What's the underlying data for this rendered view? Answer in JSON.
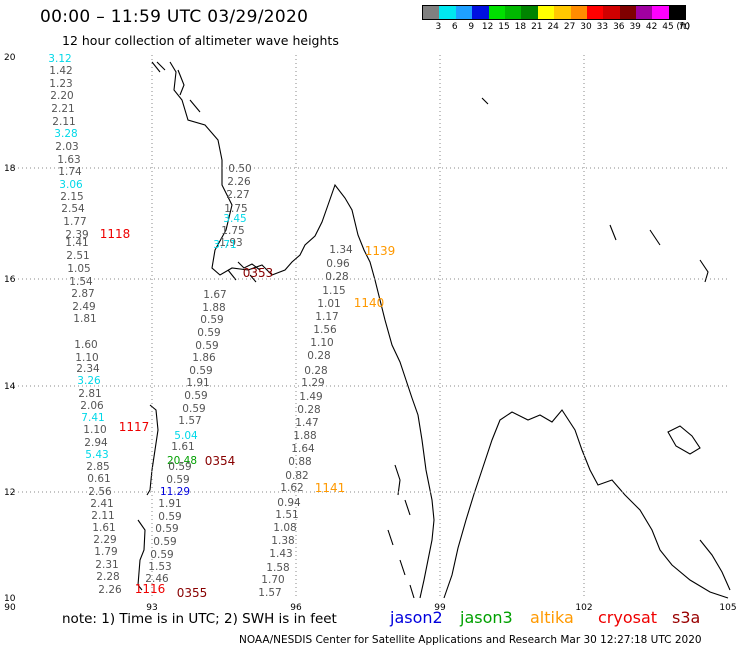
{
  "header": {
    "title": "00:00 – 11:59 UTC 03/29/2020",
    "subtitle": "12 hour collection of altimeter wave heights"
  },
  "legend": {
    "unit": "(ft)",
    "items": [
      {
        "label": "3",
        "color": "#808080"
      },
      {
        "label": "6",
        "color": "#00e8f0"
      },
      {
        "label": "9",
        "color": "#1ea0ff"
      },
      {
        "label": "12",
        "color": "#0010e0"
      },
      {
        "label": "15",
        "color": "#00e000"
      },
      {
        "label": "18",
        "color": "#00b800"
      },
      {
        "label": "21",
        "color": "#008400"
      },
      {
        "label": "24",
        "color": "#ffff00"
      },
      {
        "label": "27",
        "color": "#ffc800"
      },
      {
        "label": "30",
        "color": "#ff8c00"
      },
      {
        "label": "33",
        "color": "#ff0000"
      },
      {
        "label": "36",
        "color": "#d00000"
      },
      {
        "label": "39",
        "color": "#800000"
      },
      {
        "label": "42",
        "color": "#a000a0"
      },
      {
        "label": "45",
        "color": "#ff00ff"
      },
      {
        "label": "70",
        "color": "#000000"
      }
    ]
  },
  "map": {
    "lon_labels": [
      "90",
      "93",
      "96",
      "99",
      "102",
      "105"
    ],
    "lat_labels": [
      "20",
      "18",
      "16",
      "14",
      "12",
      "10"
    ]
  },
  "observations": {
    "track1": [
      {
        "v": "3.12",
        "c": "cyan"
      },
      {
        "v": "1.42",
        "c": "gray"
      },
      {
        "v": "1.23",
        "c": "gray"
      },
      {
        "v": "2.20",
        "c": "gray"
      },
      {
        "v": "2.21",
        "c": "gray"
      },
      {
        "v": "2.11",
        "c": "gray"
      },
      {
        "v": "3.28",
        "c": "cyan"
      },
      {
        "v": "2.03",
        "c": "gray"
      },
      {
        "v": "1.63",
        "c": "gray"
      },
      {
        "v": "1.74",
        "c": "gray"
      },
      {
        "v": "3.06",
        "c": "cyan"
      },
      {
        "v": "2.15",
        "c": "gray"
      },
      {
        "v": "2.54",
        "c": "gray"
      },
      {
        "v": "1.77",
        "c": "gray"
      },
      {
        "v": "2.39",
        "c": "gray"
      },
      {
        "v": "1.41",
        "c": "gray"
      },
      {
        "v": "2.51",
        "c": "gray"
      },
      {
        "v": "1.05",
        "c": "gray"
      },
      {
        "v": "1.54",
        "c": "gray"
      },
      {
        "v": "2.87",
        "c": "gray"
      },
      {
        "v": "2.49",
        "c": "gray"
      },
      {
        "v": "1.81",
        "c": "gray"
      },
      {
        "v": "1.60",
        "c": "gray"
      },
      {
        "v": "1.10",
        "c": "gray"
      },
      {
        "v": "2.34",
        "c": "gray"
      },
      {
        "v": "3.26",
        "c": "cyan"
      },
      {
        "v": "2.81",
        "c": "gray"
      },
      {
        "v": "2.06",
        "c": "gray"
      },
      {
        "v": "7.41",
        "c": "cyan"
      },
      {
        "v": "1.10",
        "c": "gray"
      },
      {
        "v": "2.94",
        "c": "gray"
      },
      {
        "v": "5.43",
        "c": "cyan"
      },
      {
        "v": "2.85",
        "c": "gray"
      },
      {
        "v": "0.61",
        "c": "gray"
      },
      {
        "v": "2.56",
        "c": "gray"
      },
      {
        "v": "2.41",
        "c": "gray"
      },
      {
        "v": "2.11",
        "c": "gray"
      },
      {
        "v": "1.61",
        "c": "gray"
      },
      {
        "v": "2.29",
        "c": "gray"
      },
      {
        "v": "1.79",
        "c": "gray"
      },
      {
        "v": "2.31",
        "c": "gray"
      },
      {
        "v": "2.28",
        "c": "gray"
      },
      {
        "v": "2.26",
        "c": "gray"
      }
    ],
    "track2": [
      {
        "v": "0.50",
        "c": "gray"
      },
      {
        "v": "2.26",
        "c": "gray"
      },
      {
        "v": "2.27",
        "c": "gray"
      },
      {
        "v": "1.75",
        "c": "gray"
      },
      {
        "v": "3.45",
        "c": "cyan"
      },
      {
        "v": "1.75",
        "c": "gray"
      },
      {
        "v": "1.93",
        "c": "gray"
      },
      {
        "v": "3.71",
        "c": "cyan"
      },
      {
        "v": "1.67",
        "c": "gray"
      },
      {
        "v": "1.88",
        "c": "gray"
      },
      {
        "v": "0.59",
        "c": "gray"
      },
      {
        "v": "0.59",
        "c": "gray"
      },
      {
        "v": "0.59",
        "c": "gray"
      },
      {
        "v": "1.86",
        "c": "gray"
      },
      {
        "v": "0.59",
        "c": "gray"
      },
      {
        "v": "1.91",
        "c": "gray"
      },
      {
        "v": "0.59",
        "c": "gray"
      },
      {
        "v": "0.59",
        "c": "gray"
      },
      {
        "v": "1.57",
        "c": "gray"
      },
      {
        "v": "5.04",
        "c": "cyan"
      },
      {
        "v": "1.61",
        "c": "gray"
      },
      {
        "v": "20.48",
        "c": "green"
      },
      {
        "v": "0.59",
        "c": "gray"
      },
      {
        "v": "0.59",
        "c": "gray"
      },
      {
        "v": "11.29",
        "c": "blue"
      },
      {
        "v": "1.91",
        "c": "gray"
      },
      {
        "v": "0.59",
        "c": "gray"
      },
      {
        "v": "0.59",
        "c": "gray"
      },
      {
        "v": "0.59",
        "c": "gray"
      },
      {
        "v": "0.59",
        "c": "gray"
      },
      {
        "v": "1.53",
        "c": "gray"
      },
      {
        "v": "2.46",
        "c": "gray"
      }
    ],
    "track3": [
      {
        "v": "1.34",
        "c": "gray"
      },
      {
        "v": "0.96",
        "c": "gray"
      },
      {
        "v": "0.28",
        "c": "gray"
      },
      {
        "v": "1.15",
        "c": "gray"
      },
      {
        "v": "1.01",
        "c": "gray"
      },
      {
        "v": "1.17",
        "c": "gray"
      },
      {
        "v": "1.56",
        "c": "gray"
      },
      {
        "v": "1.10",
        "c": "gray"
      },
      {
        "v": "0.28",
        "c": "gray"
      },
      {
        "v": "0.28",
        "c": "gray"
      },
      {
        "v": "1.29",
        "c": "gray"
      },
      {
        "v": "1.49",
        "c": "gray"
      },
      {
        "v": "0.28",
        "c": "gray"
      },
      {
        "v": "1.47",
        "c": "gray"
      },
      {
        "v": "1.88",
        "c": "gray"
      },
      {
        "v": "1.64",
        "c": "gray"
      },
      {
        "v": "0.88",
        "c": "gray"
      },
      {
        "v": "0.82",
        "c": "gray"
      },
      {
        "v": "1.62",
        "c": "gray"
      },
      {
        "v": "0.94",
        "c": "gray"
      },
      {
        "v": "1.51",
        "c": "gray"
      },
      {
        "v": "1.08",
        "c": "gray"
      },
      {
        "v": "1.38",
        "c": "gray"
      },
      {
        "v": "1.43",
        "c": "gray"
      },
      {
        "v": "1.58",
        "c": "gray"
      },
      {
        "v": "1.70",
        "c": "gray"
      },
      {
        "v": "1.57",
        "c": "gray"
      }
    ],
    "pass_labels": [
      {
        "v": "1118",
        "c": "red"
      },
      {
        "v": "1117",
        "c": "red"
      },
      {
        "v": "1116",
        "c": "red"
      },
      {
        "v": "0353",
        "c": "darkred"
      },
      {
        "v": "0354",
        "c": "darkred"
      },
      {
        "v": "0355",
        "c": "darkred"
      },
      {
        "v": "1139",
        "c": "orange"
      },
      {
        "v": "1140",
        "c": "orange"
      },
      {
        "v": "1141",
        "c": "orange"
      }
    ]
  },
  "footer": {
    "note": "note: 1) Time is in UTC; 2) SWH is in feet",
    "satellites": [
      {
        "name": "jason2",
        "color": "#0000dd"
      },
      {
        "name": "jason3",
        "color": "#00a000"
      },
      {
        "name": "altika",
        "color": "#ff9900"
      },
      {
        "name": "cryosat",
        "color": "#ee0000"
      },
      {
        "name": "s3a",
        "color": "#990000"
      }
    ],
    "credit": "NOAA/NESDIS Center for Satellite Applications and Research    Mar 30 12:27:18 UTC 2020"
  },
  "colors": {
    "gray": "#555555",
    "cyan": "#00d8e8",
    "blue": "#0000dd",
    "green": "#00a000",
    "red": "#ee0000",
    "darkred": "#880000",
    "orange": "#ff9900"
  }
}
